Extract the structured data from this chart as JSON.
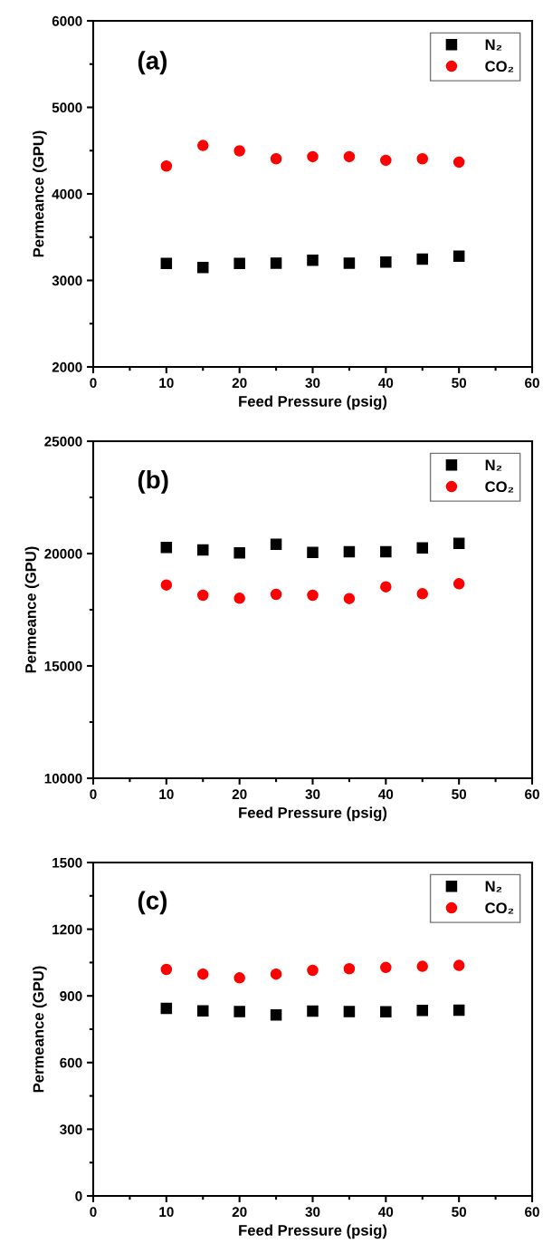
{
  "chart_data": [
    {
      "type": "scatter",
      "xlabel": "Feed Pressure (psig)",
      "ylabel": "Permeance (GPU)",
      "annotations": [
        "(a)"
      ],
      "legend": "top right",
      "grid": false,
      "xlim": [
        0,
        60
      ],
      "xticks": [
        0,
        10,
        20,
        30,
        40,
        50,
        60
      ],
      "ylim": [
        2000,
        6000
      ],
      "yticks": [
        2000,
        3000,
        4000,
        5000,
        6000
      ],
      "x": [
        10,
        15,
        20,
        25,
        30,
        35,
        40,
        45,
        50
      ],
      "series": [
        {
          "name": "N₂",
          "color": "#000000",
          "marker": "square",
          "values": [
            3196,
            3150,
            3196,
            3200,
            3234,
            3200,
            3213,
            3245,
            3280
          ]
        },
        {
          "name": "CO₂",
          "color": "#ff0000",
          "marker": "circle",
          "values": [
            4322,
            4559,
            4497,
            4406,
            4430,
            4430,
            4388,
            4406,
            4367
          ]
        }
      ]
    },
    {
      "type": "scatter",
      "xlabel": "Feed Pressure (psig)",
      "ylabel": "Permeance (GPU)",
      "annotations": [
        "(b)"
      ],
      "legend": "top right",
      "grid": false,
      "xlim": [
        0,
        60
      ],
      "xticks": [
        0,
        10,
        20,
        30,
        40,
        50,
        60
      ],
      "ylim": [
        10000,
        25000
      ],
      "yticks": [
        10000,
        15000,
        20000,
        25000
      ],
      "x": [
        10,
        15,
        20,
        25,
        30,
        35,
        40,
        45,
        50
      ],
      "series": [
        {
          "name": "N₂",
          "color": "#000000",
          "marker": "square",
          "values": [
            20269,
            20161,
            20027,
            20417,
            20054,
            20081,
            20081,
            20255,
            20457
          ]
        },
        {
          "name": "CO₂",
          "color": "#ff0000",
          "marker": "circle",
          "values": [
            18602,
            18145,
            18011,
            18185,
            18145,
            17997,
            18522,
            18212,
            18656
          ]
        }
      ]
    },
    {
      "type": "scatter",
      "xlabel": "Feed Pressure (psig)",
      "ylabel": "Permeance (GPU)",
      "annotations": [
        "(c)"
      ],
      "legend": "top right",
      "grid": false,
      "xlim": [
        0,
        60
      ],
      "xticks": [
        0,
        10,
        20,
        30,
        40,
        50,
        60
      ],
      "ylim": [
        0,
        1500
      ],
      "yticks": [
        0,
        300,
        600,
        900,
        1200,
        1500
      ],
      "x": [
        10,
        15,
        20,
        25,
        30,
        35,
        40,
        45,
        50
      ],
      "series": [
        {
          "name": "N₂",
          "color": "#000000",
          "marker": "square",
          "values": [
            844,
            833,
            829,
            814,
            832,
            829,
            828,
            835,
            836
          ]
        },
        {
          "name": "CO₂",
          "color": "#ff0000",
          "marker": "circle",
          "values": [
            1019,
            998,
            981,
            998,
            1015,
            1022,
            1028,
            1033,
            1037
          ]
        }
      ]
    }
  ]
}
